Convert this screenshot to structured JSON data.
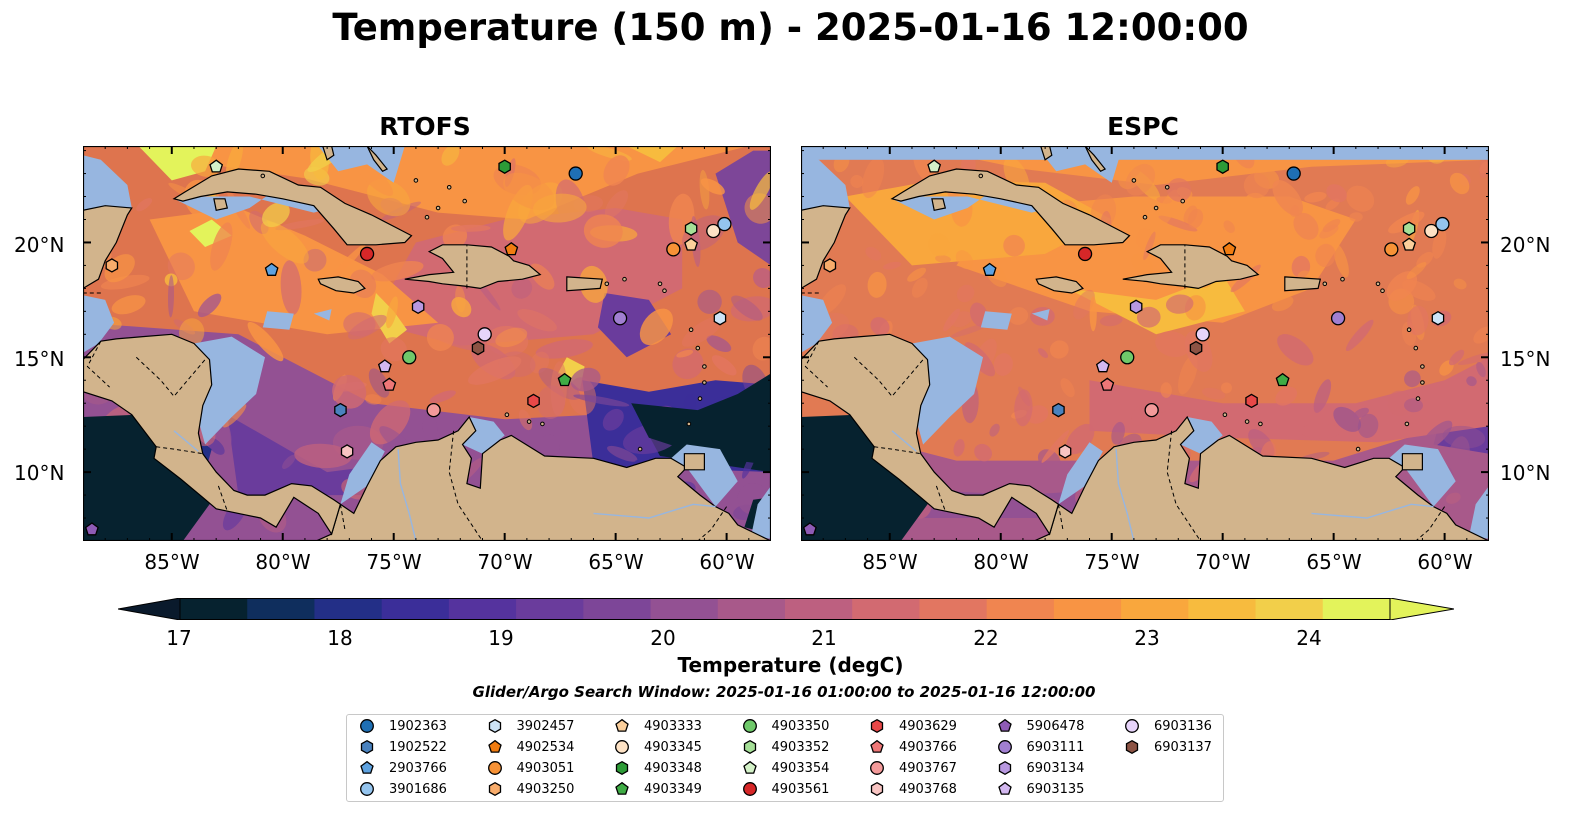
{
  "title": "Temperature (150 m) - 2025-01-16 12:00:00",
  "panels": [
    {
      "title": "RTOFS",
      "variant": "rtofs"
    },
    {
      "title": "ESPC",
      "variant": "espc"
    }
  ],
  "lon_labels": [
    "85°W",
    "80°W",
    "75°W",
    "70°W",
    "65°W",
    "60°W"
  ],
  "lat_labels": [
    "20°N",
    "15°N",
    "10°N"
  ],
  "lon_ticks": [
    -85,
    -80,
    -75,
    -70,
    -65,
    -60
  ],
  "lat_ticks": [
    20,
    15,
    10
  ],
  "extent": {
    "lon": [
      -89,
      -58
    ],
    "lat": [
      7,
      24.2
    ]
  },
  "colorbar": {
    "label": "Temperature (degC)",
    "ticks": [
      "17",
      "18",
      "19",
      "20",
      "21",
      "22",
      "23",
      "24"
    ],
    "tick_values": [
      17,
      18,
      19,
      20,
      21,
      22,
      23,
      24
    ],
    "range": [
      16.5,
      24.75
    ],
    "colors": [
      "#06222f",
      "#0f2e5d",
      "#232f87",
      "#3b2e99",
      "#55339e",
      "#6a3c9c",
      "#7d4698",
      "#935193",
      "#a8598a",
      "#bd6080",
      "#d26a71",
      "#e27661",
      "#f08550",
      "#f89444",
      "#f9a73d",
      "#f7bb3e",
      "#f2cf4a",
      "#e3f35b"
    ],
    "extend_low": "#0a1a2c",
    "extend_high": "#e3f35b"
  },
  "search_window": "Glider/Argo Search Window: 2025-01-16 01:00:00 to 2025-01-16 12:00:00",
  "colors": {
    "land": "#d2b48c",
    "shelf": "#97b6e0",
    "deep_dark": "#06222f",
    "coast": "#000000"
  },
  "platforms": [
    {
      "id": "1902363",
      "marker": "circle",
      "color": "#1f6fb4",
      "lon": -66.8,
      "lat": 23.0
    },
    {
      "id": "1902522",
      "marker": "hexagon",
      "color": "#4a82be",
      "lon": -77.4,
      "lat": 12.7
    },
    {
      "id": "2903766",
      "marker": "pentagon",
      "color": "#5ea2e0",
      "lon": -80.5,
      "lat": 18.8
    },
    {
      "id": "3901686",
      "marker": "circle",
      "color": "#94c4ee",
      "lon": -60.1,
      "lat": 20.8
    },
    {
      "id": "3902457",
      "marker": "hexagon",
      "color": "#cde4f7",
      "lon": -60.3,
      "lat": 16.7
    },
    {
      "id": "4902534",
      "marker": "pentagon",
      "color": "#f07c11",
      "lon": -69.7,
      "lat": 19.7
    },
    {
      "id": "4903051",
      "marker": "circle",
      "color": "#f79236",
      "lon": -62.4,
      "lat": 19.7
    },
    {
      "id": "4903250",
      "marker": "hexagon",
      "color": "#f8ac6b",
      "lon": -87.7,
      "lat": 19.0
    },
    {
      "id": "4903333",
      "marker": "pentagon",
      "color": "#fbcf9c",
      "lon": -61.6,
      "lat": 19.9
    },
    {
      "id": "4903345",
      "marker": "circle",
      "color": "#fde2c5",
      "lon": -60.6,
      "lat": 20.5
    },
    {
      "id": "4903348",
      "marker": "hexagon",
      "color": "#2d9b37",
      "lon": -70.0,
      "lat": 23.3
    },
    {
      "id": "4903349",
      "marker": "pentagon",
      "color": "#3fac45",
      "lon": -67.3,
      "lat": 14.0
    },
    {
      "id": "4903350",
      "marker": "circle",
      "color": "#6fc96a",
      "lon": -74.3,
      "lat": 15.0
    },
    {
      "id": "4903352",
      "marker": "hexagon",
      "color": "#a5df97",
      "lon": -61.6,
      "lat": 20.6
    },
    {
      "id": "4903354",
      "marker": "pentagon",
      "color": "#d4f2c8",
      "lon": -83.0,
      "lat": 23.3
    },
    {
      "id": "4903561",
      "marker": "circle",
      "color": "#d62728",
      "lon": -76.2,
      "lat": 19.5
    },
    {
      "id": "4903629",
      "marker": "hexagon",
      "color": "#e84848",
      "lon": -68.7,
      "lat": 13.1
    },
    {
      "id": "4903766",
      "marker": "pentagon",
      "color": "#ee7777",
      "lon": -75.2,
      "lat": 13.8
    },
    {
      "id": "4903767",
      "marker": "circle",
      "color": "#f39a9a",
      "lon": -73.2,
      "lat": 12.7
    },
    {
      "id": "4903768",
      "marker": "hexagon",
      "color": "#f8c4c2",
      "lon": -77.1,
      "lat": 10.9
    },
    {
      "id": "5906478",
      "marker": "pentagon",
      "color": "#8e5bb5",
      "lon": -88.6,
      "lat": 7.5
    },
    {
      "id": "6903111",
      "marker": "circle",
      "color": "#a17fd1",
      "lon": -64.8,
      "lat": 16.7
    },
    {
      "id": "6903134",
      "marker": "hexagon",
      "color": "#b898e0",
      "lon": -73.9,
      "lat": 17.2
    },
    {
      "id": "6903135",
      "marker": "pentagon",
      "color": "#d3b8f0",
      "lon": -75.4,
      "lat": 14.6
    },
    {
      "id": "6903136",
      "marker": "circle",
      "color": "#e7d4fa",
      "lon": -70.9,
      "lat": 16.0
    },
    {
      "id": "6903137",
      "marker": "hexagon",
      "color": "#8c5344",
      "lon": -71.2,
      "lat": 15.4
    }
  ]
}
